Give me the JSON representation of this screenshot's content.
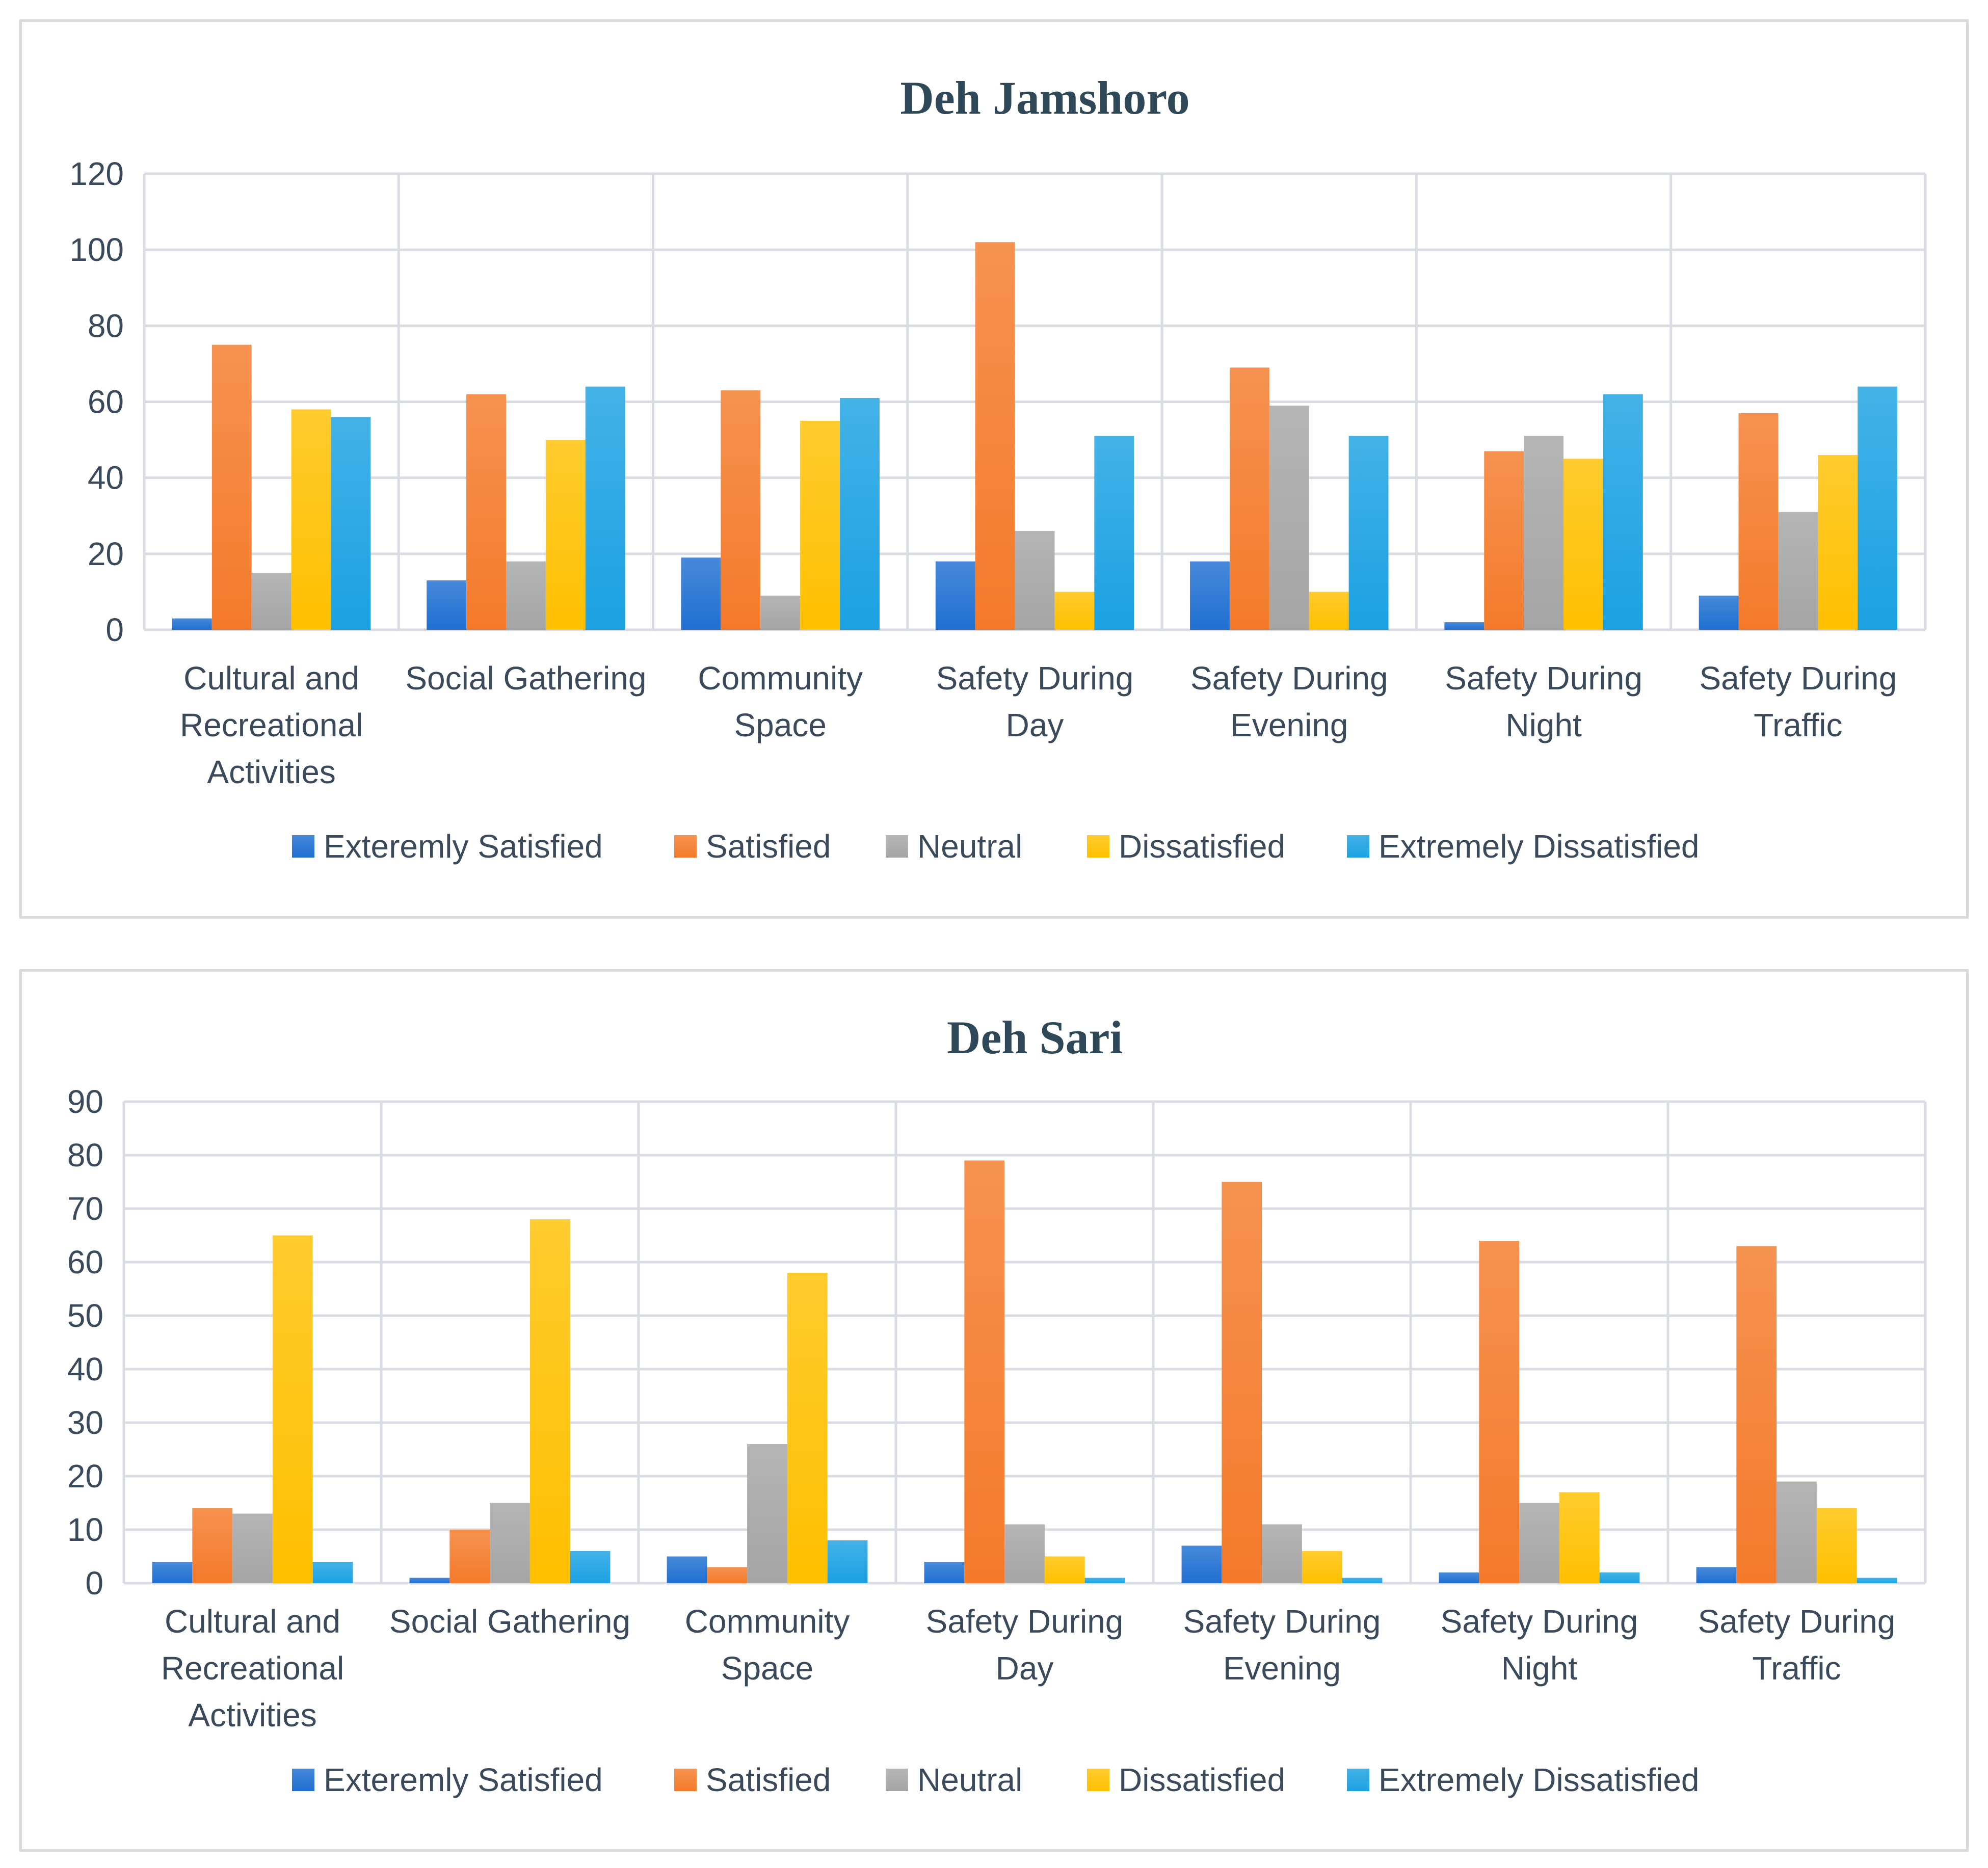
{
  "chart_data": [
    {
      "type": "bar",
      "title": "Deh Jamshoro",
      "xlabel": "",
      "ylabel": "",
      "ylim": [
        0,
        120
      ],
      "yticks": [
        0,
        20,
        40,
        60,
        80,
        100,
        120
      ],
      "grid": true,
      "legend": "bottom",
      "categories": [
        [
          "Cultural and",
          "Recreational",
          "Activities"
        ],
        [
          "Social Gathering"
        ],
        [
          "Community",
          "Space"
        ],
        [
          "Safety During",
          "Day"
        ],
        [
          "Safety During",
          "Evening"
        ],
        [
          "Safety During",
          "Night"
        ],
        [
          "Safety During",
          "Traffic"
        ]
      ],
      "series": [
        {
          "name": "Exteremly Satisfied",
          "color": "#1f6fd1",
          "values": [
            3,
            13,
            19,
            18,
            18,
            2,
            9
          ]
        },
        {
          "name": "Satisfied",
          "color": "#f47a2a",
          "values": [
            75,
            62,
            63,
            102,
            69,
            47,
            57
          ]
        },
        {
          "name": "Neutral",
          "color": "#a5a5a5",
          "values": [
            15,
            18,
            9,
            26,
            59,
            51,
            31
          ]
        },
        {
          "name": "Dissatisfied",
          "color": "#ffc000",
          "values": [
            58,
            50,
            55,
            10,
            10,
            45,
            46
          ]
        },
        {
          "name": "Extremely Dissatisfied",
          "color": "#1ba1e2",
          "values": [
            56,
            64,
            61,
            51,
            51,
            62,
            64
          ]
        }
      ]
    },
    {
      "type": "bar",
      "title": "Deh Sari",
      "xlabel": "",
      "ylabel": "",
      "ylim": [
        0,
        90
      ],
      "yticks": [
        0,
        10,
        20,
        30,
        40,
        50,
        60,
        70,
        80,
        90
      ],
      "grid": true,
      "legend": "bottom",
      "categories": [
        [
          "Cultural and",
          "Recreational",
          "Activities"
        ],
        [
          "Social Gathering"
        ],
        [
          "Community",
          "Space"
        ],
        [
          "Safety During",
          "Day"
        ],
        [
          "Safety During",
          "Evening"
        ],
        [
          "Safety During",
          "Night"
        ],
        [
          "Safety During",
          "Traffic"
        ]
      ],
      "series": [
        {
          "name": "Exteremly Satisfied",
          "color": "#1f6fd1",
          "values": [
            4,
            1,
            5,
            4,
            7,
            2,
            3
          ]
        },
        {
          "name": "Satisfied",
          "color": "#f47a2a",
          "values": [
            14,
            10,
            3,
            79,
            75,
            64,
            63
          ]
        },
        {
          "name": "Neutral",
          "color": "#a5a5a5",
          "values": [
            13,
            15,
            26,
            11,
            11,
            15,
            19
          ]
        },
        {
          "name": "Dissatisfied",
          "color": "#ffc000",
          "values": [
            65,
            68,
            58,
            5,
            6,
            17,
            14
          ]
        },
        {
          "name": "Extremely Dissatisfied",
          "color": "#1ba1e2",
          "values": [
            4,
            6,
            8,
            1,
            1,
            2,
            1
          ]
        }
      ]
    }
  ]
}
